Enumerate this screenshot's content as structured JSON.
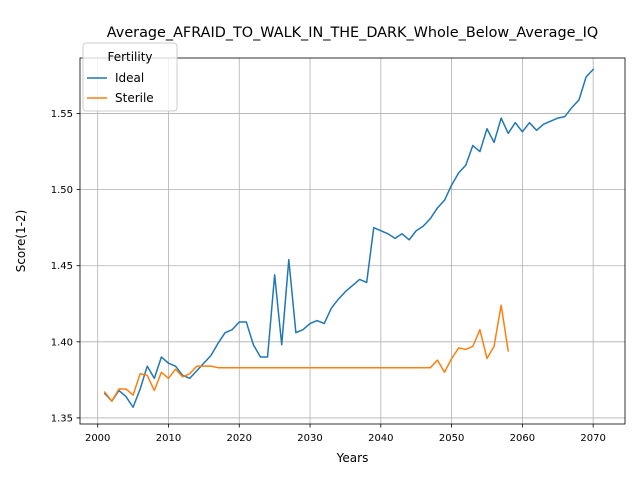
{
  "chart_data": {
    "type": "line",
    "title": "Average_AFRAID_TO_WALK_IN_THE_DARK_Whole_Below_Average_IQ",
    "xlabel": "Years",
    "ylabel": "Score(1-2)",
    "xlim": [
      1997.5,
      2074.5
    ],
    "ylim": [
      1.346,
      1.5865
    ],
    "xticks": [
      2000,
      2010,
      2020,
      2030,
      2040,
      2050,
      2060,
      2070
    ],
    "yticks": [
      1.35,
      1.4,
      1.45,
      1.5,
      1.55
    ],
    "ytick_labels": [
      "1.35",
      "1.40",
      "1.45",
      "1.50",
      "1.55"
    ],
    "grid": true,
    "legend": {
      "title": "Fertility",
      "placement": "top-left"
    },
    "series": [
      {
        "name": "Ideal",
        "color": "#1f77b4",
        "x": [
          2001,
          2002,
          2003,
          2004,
          2005,
          2006,
          2007,
          2008,
          2009,
          2010,
          2011,
          2012,
          2013,
          2014,
          2015,
          2016,
          2017,
          2018,
          2019,
          2020,
          2021,
          2022,
          2023,
          2024,
          2025,
          2026,
          2027,
          2028,
          2029,
          2030,
          2031,
          2032,
          2033,
          2034,
          2035,
          2036,
          2037,
          2038,
          2039,
          2040,
          2041,
          2042,
          2043,
          2044,
          2045,
          2046,
          2047,
          2048,
          2049,
          2050,
          2051,
          2052,
          2053,
          2054,
          2055,
          2056,
          2057,
          2058,
          2059,
          2060,
          2061,
          2062,
          2063,
          2064,
          2065,
          2066,
          2067,
          2068,
          2069,
          2070
        ],
        "values": [
          1.366,
          1.361,
          1.368,
          1.364,
          1.357,
          1.369,
          1.384,
          1.376,
          1.39,
          1.386,
          1.384,
          1.378,
          1.376,
          1.381,
          1.386,
          1.391,
          1.399,
          1.406,
          1.408,
          1.413,
          1.413,
          1.398,
          1.39,
          1.39,
          1.444,
          1.398,
          1.454,
          1.406,
          1.408,
          1.412,
          1.414,
          1.412,
          1.422,
          1.428,
          1.433,
          1.437,
          1.441,
          1.439,
          1.475,
          1.473,
          1.471,
          1.468,
          1.471,
          1.467,
          1.473,
          1.476,
          1.481,
          1.488,
          1.493,
          1.503,
          1.511,
          1.516,
          1.529,
          1.525,
          1.54,
          1.531,
          1.547,
          1.537,
          1.544,
          1.538,
          1.544,
          1.539,
          1.543,
          1.545,
          1.547,
          1.548,
          1.554,
          1.559,
          1.574,
          1.579
        ]
      },
      {
        "name": "Sterile",
        "color": "#ff7f0e",
        "x": [
          2001,
          2002,
          2003,
          2004,
          2005,
          2006,
          2007,
          2008,
          2009,
          2010,
          2011,
          2012,
          2013,
          2014,
          2015,
          2016,
          2017,
          2018,
          2019,
          2020,
          2021,
          2022,
          2023,
          2024,
          2025,
          2026,
          2027,
          2028,
          2029,
          2030,
          2031,
          2032,
          2033,
          2034,
          2035,
          2036,
          2037,
          2038,
          2039,
          2040,
          2041,
          2042,
          2043,
          2044,
          2045,
          2046,
          2047,
          2048,
          2049,
          2050,
          2051,
          2052,
          2053,
          2054,
          2055,
          2056,
          2057,
          2058
        ],
        "values": [
          1.367,
          1.361,
          1.369,
          1.369,
          1.365,
          1.379,
          1.378,
          1.368,
          1.38,
          1.376,
          1.382,
          1.377,
          1.379,
          1.384,
          1.384,
          1.384,
          1.383,
          1.383,
          1.383,
          1.383,
          1.383,
          1.383,
          1.383,
          1.383,
          1.383,
          1.383,
          1.383,
          1.383,
          1.383,
          1.383,
          1.383,
          1.383,
          1.383,
          1.383,
          1.383,
          1.383,
          1.383,
          1.383,
          1.383,
          1.383,
          1.383,
          1.383,
          1.383,
          1.383,
          1.383,
          1.383,
          1.383,
          1.388,
          1.38,
          1.389,
          1.396,
          1.395,
          1.397,
          1.408,
          1.389,
          1.397,
          1.424,
          1.394
        ]
      }
    ]
  }
}
